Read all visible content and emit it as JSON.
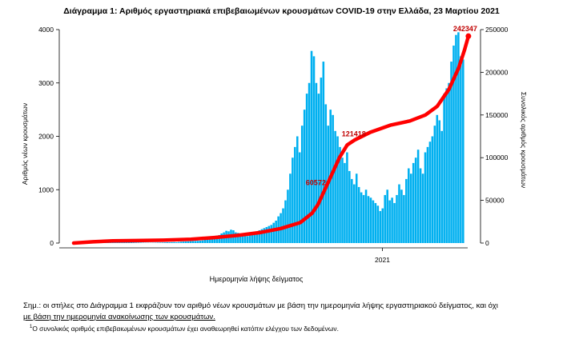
{
  "chart_data": {
    "type": "bar",
    "title": "Διάγραμμα 1: Αριθμός εργαστηριακά επιβεβαιωμένων κρουσμάτων COVID-19 στην Ελλάδα, 23 Μαρτίου 2021",
    "xlabel": "Ημερομηνία λήψης δείγματος",
    "ylabel": "Αριθμός νέων κρουσμάτων",
    "y2label": "Συνολικός αριθμός κρουσμάτων",
    "xticks": [
      "2021"
    ],
    "ylim": [
      0,
      4000
    ],
    "yticks": [
      0,
      1000,
      2000,
      3000,
      4000
    ],
    "y2lim": [
      0,
      250000
    ],
    "y2ticks": [
      0,
      50000,
      100000,
      150000,
      200000,
      250000
    ],
    "grid": false,
    "bar_color": "#00b0f0",
    "line_color": "#ff0000",
    "annotation_color": "#c00000",
    "series": [
      {
        "type": "bar",
        "axis": "left",
        "values": [
          5,
          8,
          6,
          10,
          12,
          9,
          7,
          5,
          4,
          6,
          8,
          12,
          25,
          30,
          45,
          40,
          52,
          60,
          55,
          40,
          36,
          30,
          25,
          18,
          15,
          12,
          10,
          9,
          8,
          6,
          5,
          5,
          4,
          5,
          6,
          8,
          9,
          10,
          12,
          15,
          14,
          16,
          18,
          15,
          20,
          25,
          28,
          30,
          32,
          35,
          38,
          40,
          42,
          45,
          50,
          60,
          80,
          100,
          120,
          130,
          140,
          150,
          180,
          200,
          230,
          220,
          250,
          240,
          200,
          190,
          170,
          150,
          140,
          130,
          150,
          170,
          190,
          210,
          240,
          260,
          280,
          300,
          320,
          340,
          380,
          420,
          500,
          560,
          650,
          800,
          1000,
          1300,
          1600,
          1800,
          2000,
          1700,
          2200,
          2500,
          2800,
          3000,
          3600,
          3500,
          3000,
          2800,
          3100,
          3400,
          2600,
          2200,
          2500,
          2400,
          2100,
          2000,
          1800,
          1600,
          1500,
          1700,
          1350,
          1200,
          1100,
          1300,
          1050,
          950,
          900,
          1000,
          880,
          850,
          800,
          750,
          700,
          600,
          650,
          900,
          1000,
          800,
          850,
          750,
          900,
          1100,
          1000,
          900,
          1200,
          1400,
          1300,
          1500,
          1600,
          1750,
          1400,
          1300,
          1700,
          1800,
          1900,
          2000,
          2200,
          2400,
          2300,
          2100,
          2800,
          2900,
          3000,
          3400,
          3700,
          3900,
          3950,
          3500,
          3440
        ]
      },
      {
        "type": "line",
        "axis": "right",
        "name": "",
        "points": [
          [
            0,
            0
          ],
          [
            0.05,
            1500
          ],
          [
            0.1,
            2500
          ],
          [
            0.16,
            2900
          ],
          [
            0.23,
            3400
          ],
          [
            0.3,
            4500
          ],
          [
            0.36,
            6500
          ],
          [
            0.42,
            9000
          ],
          [
            0.48,
            12500
          ],
          [
            0.53,
            17000
          ],
          [
            0.58,
            24000
          ],
          [
            0.61,
            35000
          ],
          [
            0.625,
            45000
          ],
          [
            0.64,
            60000
          ],
          [
            0.66,
            80000
          ],
          [
            0.68,
            100000
          ],
          [
            0.7,
            115000
          ],
          [
            0.72,
            121000
          ],
          [
            0.76,
            130000
          ],
          [
            0.81,
            138000
          ],
          [
            0.86,
            143000
          ],
          [
            0.9,
            150000
          ],
          [
            0.93,
            160000
          ],
          [
            0.96,
            180000
          ],
          [
            0.985,
            205000
          ],
          [
            1,
            226000
          ],
          [
            1.01,
            242347
          ]
        ]
      }
    ],
    "data_labels": [
      {
        "text": "60572",
        "series": "total",
        "x": 0.64,
        "y": 60572
      },
      {
        "text": "121418",
        "series": "total",
        "x": 0.725,
        "y": 121418
      },
      {
        "text": "242347",
        "series": "total",
        "x": 1.01,
        "y": 242347
      }
    ]
  },
  "note": {
    "line1": "Σημ.: οι στήλες στο Διάγραμμα 1 εκφράζουν τον αριθμό νέων κρουσμάτων με βάση την ημερομηνία λήψης εργαστηριακού δείγματος, και όχι",
    "line2": "με βάση την ημερομηνία ανακοίνωσης των κρουσμάτων."
  },
  "footnote": {
    "marker": "1",
    "text": "Ο συνολικός αριθμός επιβεβαιωμένων κρουσμάτων έχει αναθεωρηθεί κατόπιν ελέγχου των δεδομένων."
  }
}
